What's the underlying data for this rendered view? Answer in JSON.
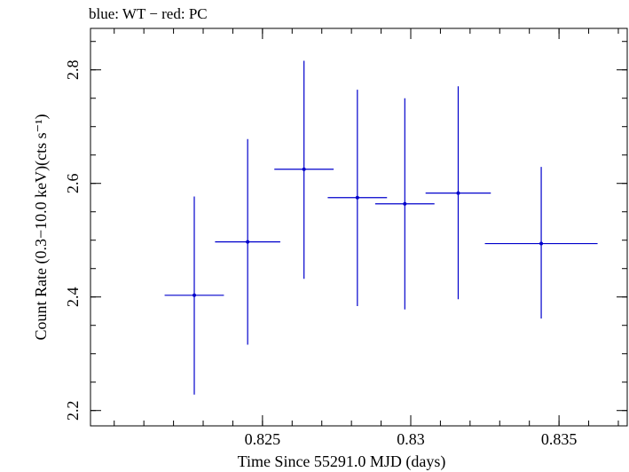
{
  "chart_data": {
    "type": "scatter",
    "title": "blue: WT − red: PC",
    "xlabel": "Time Since 55291.0 MJD (days)",
    "ylabel": "Count Rate (0.3−10.0 keV)(cts s⁻¹)",
    "xlim": [
      0.8192,
      0.8373
    ],
    "ylim": [
      2.173,
      2.873
    ],
    "x_ticks": [
      {
        "value": 0.825,
        "label": "0.825"
      },
      {
        "value": 0.83,
        "label": "0.83"
      },
      {
        "value": 0.835,
        "label": "0.835"
      }
    ],
    "x_minor_step": 0.001,
    "y_ticks": [
      {
        "value": 2.2,
        "label": "2.2"
      },
      {
        "value": 2.4,
        "label": "2.4"
      },
      {
        "value": 2.6,
        "label": "2.6"
      },
      {
        "value": 2.8,
        "label": "2.8"
      }
    ],
    "y_minor_step": 0.05,
    "grid": false,
    "series": [
      {
        "name": "WT",
        "color": "#0000cc",
        "points": [
          {
            "x": 0.8227,
            "xerr_lo": 0.001,
            "xerr_hi": 0.001,
            "y": 2.403,
            "y_lo": 2.228,
            "y_hi": 2.577
          },
          {
            "x": 0.8245,
            "xerr_lo": 0.0011,
            "xerr_hi": 0.0011,
            "y": 2.497,
            "y_lo": 2.316,
            "y_hi": 2.678
          },
          {
            "x": 0.8264,
            "xerr_lo": 0.001,
            "xerr_hi": 0.001,
            "y": 2.625,
            "y_lo": 2.432,
            "y_hi": 2.816
          },
          {
            "x": 0.8282,
            "xerr_lo": 0.001,
            "xerr_hi": 0.001,
            "y": 2.575,
            "y_lo": 2.384,
            "y_hi": 2.765
          },
          {
            "x": 0.8298,
            "xerr_lo": 0.001,
            "xerr_hi": 0.001,
            "y": 2.564,
            "y_lo": 2.378,
            "y_hi": 2.75
          },
          {
            "x": 0.8316,
            "xerr_lo": 0.0011,
            "xerr_hi": 0.0011,
            "y": 2.583,
            "y_lo": 2.396,
            "y_hi": 2.771
          },
          {
            "x": 0.8344,
            "xerr_lo": 0.0019,
            "xerr_hi": 0.0019,
            "y": 2.494,
            "y_lo": 2.362,
            "y_hi": 2.629
          }
        ]
      }
    ]
  }
}
